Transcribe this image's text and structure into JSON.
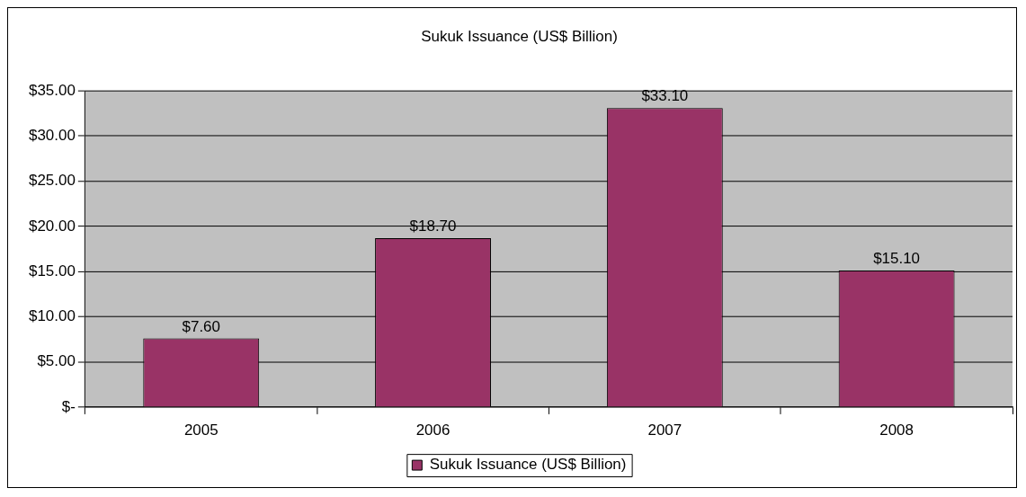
{
  "chart_data": {
    "type": "bar",
    "title": "Sukuk Issuance (US$ Billion)",
    "categories": [
      "2005",
      "2006",
      "2007",
      "2008"
    ],
    "series": [
      {
        "name": "Sukuk Issuance (US$ Billion)",
        "color": "#993366",
        "values": [
          7.6,
          18.7,
          33.1,
          15.1
        ],
        "value_labels": [
          "$7.60",
          "$18.70",
          "$33.10",
          "$15.10"
        ]
      }
    ],
    "ylim": [
      0,
      35
    ],
    "yticks": [
      {
        "value": 0,
        "label": "$-"
      },
      {
        "value": 5,
        "label": "$5.00"
      },
      {
        "value": 10,
        "label": "$10.00"
      },
      {
        "value": 15,
        "label": "$15.00"
      },
      {
        "value": 20,
        "label": "$20.00"
      },
      {
        "value": 25,
        "label": "$25.00"
      },
      {
        "value": 30,
        "label": "$30.00"
      },
      {
        "value": 35,
        "label": "$35.00"
      }
    ],
    "grid": "y",
    "legend": "bottom"
  }
}
